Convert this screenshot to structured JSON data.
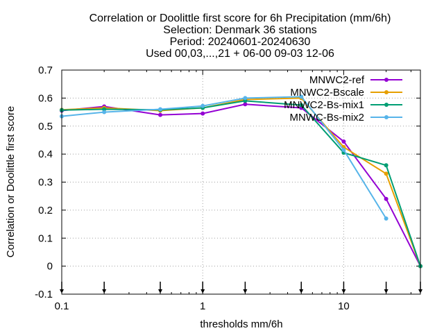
{
  "chart_data": {
    "type": "line",
    "title_lines": [
      "Correlation or Doolittle first score  for 6h Precipitation (mm/6h)",
      "Selection: Denmark     36 stations",
      "Period: 20240601-20240630",
      "Used 00,03,...,21 + 06-00 09-03 12-06"
    ],
    "xlabel": "thresholds mm/6h",
    "ylabel": "Correlation or Doolittle first score",
    "x_scale": "log",
    "xlim": [
      0.1,
      35
    ],
    "ylim": [
      -0.1,
      0.7
    ],
    "x_ticks": [
      {
        "value": 0.1,
        "label": "0.1"
      },
      {
        "value": 1,
        "label": "1"
      },
      {
        "value": 10,
        "label": "10"
      }
    ],
    "y_ticks": [
      {
        "value": -0.1,
        "label": "-0.1"
      },
      {
        "value": 0,
        "label": "0"
      },
      {
        "value": 0.1,
        "label": "0.1"
      },
      {
        "value": 0.2,
        "label": "0.2"
      },
      {
        "value": 0.3,
        "label": "0.3"
      },
      {
        "value": 0.4,
        "label": "0.4"
      },
      {
        "value": 0.5,
        "label": "0.5"
      },
      {
        "value": 0.6,
        "label": "0.6"
      },
      {
        "value": 0.7,
        "label": "0.7"
      }
    ],
    "threshold_markers": [
      0.1,
      0.2,
      0.5,
      1,
      2,
      5,
      10,
      20,
      35
    ],
    "grid": true,
    "legend_position": "top-right",
    "series": [
      {
        "name": "MNWC2-ref",
        "color": "#9400d3",
        "x": [
          0.1,
          0.2,
          0.5,
          1,
          2,
          5,
          10,
          20,
          35
        ],
        "y": [
          0.555,
          0.57,
          0.54,
          0.545,
          0.578,
          0.565,
          0.445,
          0.24,
          0.0
        ]
      },
      {
        "name": "MNWC2-Bscale",
        "color": "#e69f00",
        "x": [
          0.1,
          0.2,
          0.5,
          1,
          2,
          5,
          10,
          20,
          35
        ],
        "y": [
          0.558,
          0.565,
          0.555,
          0.565,
          0.595,
          0.6,
          0.425,
          0.33,
          0.0
        ]
      },
      {
        "name": "MNWC2-Bs-mix1",
        "color": "#009e73",
        "x": [
          0.1,
          0.2,
          0.5,
          1,
          2,
          5,
          10,
          20,
          35
        ],
        "y": [
          0.557,
          0.56,
          0.558,
          0.565,
          0.59,
          0.575,
          0.405,
          0.36,
          0.0
        ]
      },
      {
        "name": "MNWC-Bs-mix2",
        "color": "#56b4e9",
        "x": [
          0.1,
          0.2,
          0.5,
          1,
          2,
          5,
          10,
          20
        ],
        "y": [
          0.535,
          0.55,
          0.56,
          0.572,
          0.6,
          0.605,
          0.415,
          0.17
        ]
      }
    ]
  }
}
